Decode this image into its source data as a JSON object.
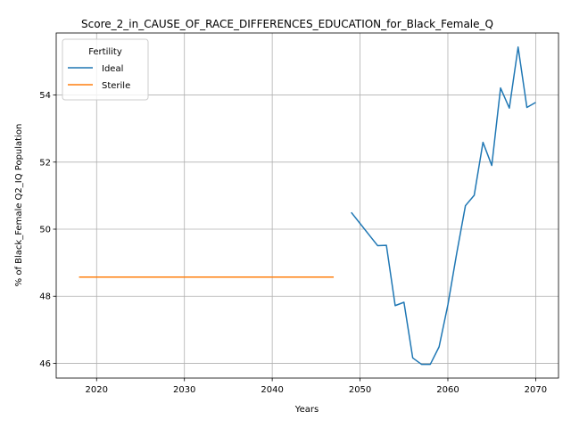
{
  "chart_data": {
    "type": "line",
    "title": "Score_2_in_CAUSE_OF_RACE_DIFFERENCES_EDUCATION_for_Black_Female_Q",
    "xlabel": "Years",
    "ylabel": "% of Black_Female Q2_IQ Population",
    "xlim": [
      2015.4,
      2072.6
    ],
    "ylim": [
      45.56,
      55.85
    ],
    "xticks": [
      2020,
      2030,
      2040,
      2050,
      2060,
      2070
    ],
    "yticks": [
      46,
      48,
      50,
      52,
      54
    ],
    "grid": true,
    "legend": {
      "title": "Fertility",
      "placement": "top-left"
    },
    "series": [
      {
        "name": "Ideal",
        "color": "#1f77b4",
        "x": [
          2049,
          2050,
          2051,
          2052,
          2053,
          2054,
          2055,
          2056,
          2057,
          2058,
          2059,
          2060,
          2061,
          2062,
          2063,
          2064,
          2065,
          2066,
          2067,
          2068,
          2069,
          2070
        ],
        "y": [
          50.5,
          50.17,
          49.84,
          49.51,
          49.52,
          47.72,
          47.82,
          46.16,
          45.97,
          45.97,
          46.49,
          47.74,
          49.27,
          50.7,
          51.01,
          52.59,
          51.9,
          54.21,
          53.61,
          55.43,
          53.63,
          53.78
        ]
      },
      {
        "name": "Sterile",
        "color": "#ff7f0e",
        "x": [
          2018,
          2047
        ],
        "y": [
          48.57,
          48.57
        ]
      }
    ]
  }
}
